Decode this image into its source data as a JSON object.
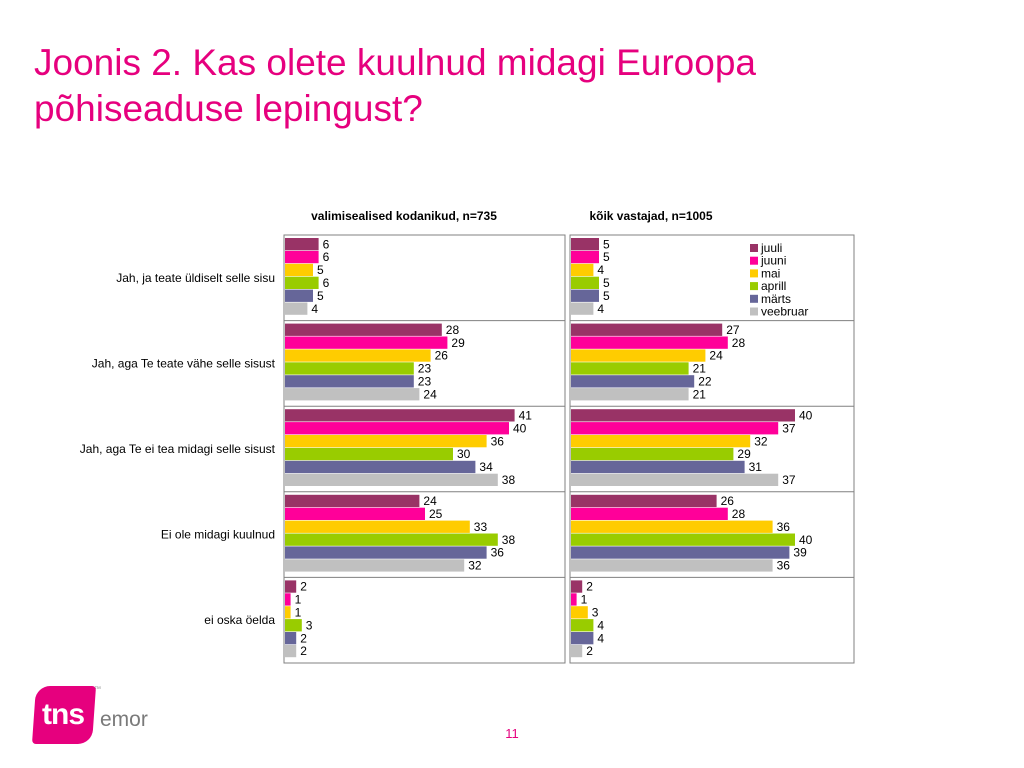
{
  "title": {
    "line1": "Joonis 2. Kas olete kuulnud midagi Euroopa",
    "line2": "põhiseaduse lepingust?"
  },
  "page_number": "11",
  "logo": {
    "brand": "tns",
    "suffix": "emor",
    "trademark": "™"
  },
  "colors": {
    "title": "#e6007e",
    "juuli": "#993366",
    "juuni": "#ff0099",
    "mai": "#ffcc00",
    "aprill": "#99cc00",
    "märts": "#666699",
    "veebruar": "#c0c0c0"
  },
  "chart_data": [
    {
      "type": "bar",
      "orientation": "horizontal",
      "title": "valimisealised kodanikud, n=735",
      "categories": [
        "Jah, ja teate üldiselt selle sisu",
        "Jah, aga Te teate vähe selle sisust",
        "Jah, aga Te ei tea midagi selle sisust",
        "Ei ole midagi kuulnud",
        "ei oska öelda"
      ],
      "series": [
        {
          "name": "juuli",
          "color": "#993366",
          "values": [
            6,
            28,
            41,
            24,
            2
          ]
        },
        {
          "name": "juuni",
          "color": "#ff0099",
          "values": [
            6,
            29,
            40,
            25,
            1
          ]
        },
        {
          "name": "mai",
          "color": "#ffcc00",
          "values": [
            5,
            26,
            36,
            33,
            1
          ]
        },
        {
          "name": "aprill",
          "color": "#99cc00",
          "values": [
            6,
            23,
            30,
            38,
            3
          ]
        },
        {
          "name": "märts",
          "color": "#666699",
          "values": [
            5,
            23,
            34,
            36,
            2
          ]
        },
        {
          "name": "veebruar",
          "color": "#c0c0c0",
          "values": [
            4,
            24,
            38,
            32,
            2
          ]
        }
      ],
      "xlim": [
        0,
        50
      ],
      "grid": false,
      "legend": "none"
    },
    {
      "type": "bar",
      "orientation": "horizontal",
      "title": "kõik vastajad, n=1005",
      "categories": [
        "Jah, ja teate üldiselt selle sisu",
        "Jah, aga Te teate vähe selle sisust",
        "Jah, aga Te ei tea midagi selle sisust",
        "Ei ole midagi kuulnud",
        "ei oska öelda"
      ],
      "series": [
        {
          "name": "juuli",
          "color": "#993366",
          "values": [
            5,
            27,
            40,
            26,
            2
          ]
        },
        {
          "name": "juuni",
          "color": "#ff0099",
          "values": [
            5,
            28,
            37,
            28,
            1
          ]
        },
        {
          "name": "mai",
          "color": "#ffcc00",
          "values": [
            4,
            24,
            32,
            36,
            3
          ]
        },
        {
          "name": "aprill",
          "color": "#99cc00",
          "values": [
            5,
            21,
            29,
            40,
            4
          ]
        },
        {
          "name": "märts",
          "color": "#666699",
          "values": [
            5,
            22,
            31,
            39,
            4
          ]
        },
        {
          "name": "veebruar",
          "color": "#c0c0c0",
          "values": [
            4,
            21,
            37,
            36,
            2
          ]
        }
      ],
      "xlim": [
        0,
        50
      ],
      "grid": false,
      "legend": "top-right"
    }
  ]
}
